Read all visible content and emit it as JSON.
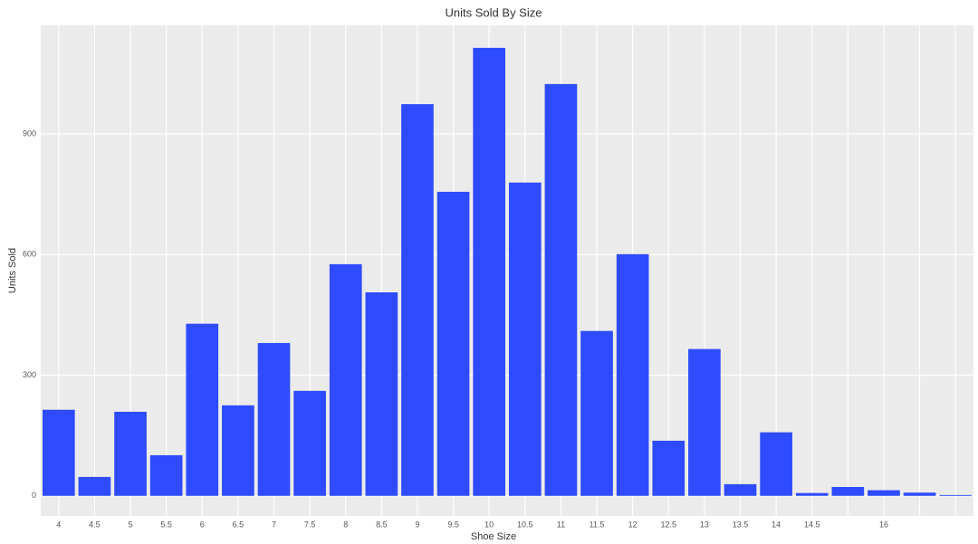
{
  "chart_data": {
    "type": "bar",
    "title": "Units Sold By Size",
    "x_label": "Shoe Size",
    "y_label": "Units Sold",
    "categories": [
      "4",
      "4.5",
      "5",
      "5.5",
      "6",
      "6.5",
      "7",
      "7.5",
      "8",
      "8.5",
      "9",
      "9.5",
      "10",
      "10.5",
      "11",
      "11.5",
      "12",
      "12.5",
      "13",
      "13.5",
      "14",
      "14.5",
      null,
      "16",
      null,
      null
    ],
    "values": [
      214,
      47,
      209,
      101,
      428,
      225,
      380,
      261,
      576,
      506,
      974,
      756,
      1114,
      779,
      1024,
      410,
      601,
      137,
      365,
      29,
      158,
      7,
      22,
      14,
      8,
      2
    ],
    "color": "#2e4bff",
    "ylim": [
      -50,
      1170
    ],
    "yticks": [
      0,
      300,
      600,
      900
    ],
    "grid": true
  }
}
